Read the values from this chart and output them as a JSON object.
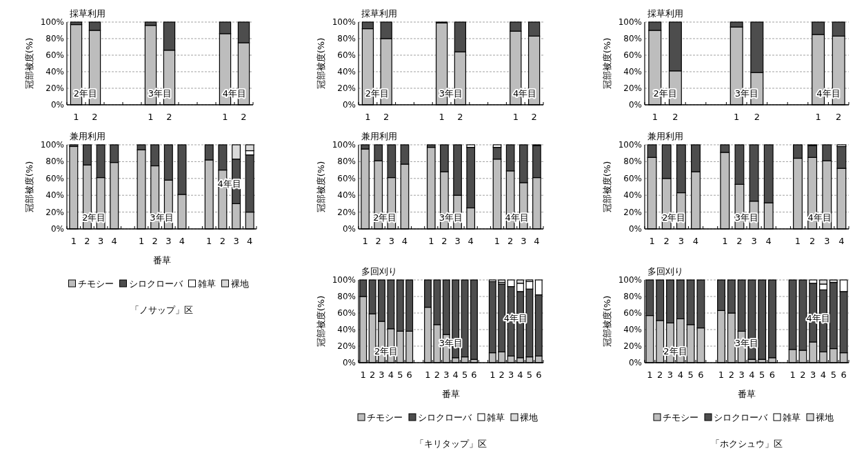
{
  "chart_data": [
    {
      "type": "bar",
      "stacked": true,
      "title": "採草利用",
      "ylabel": "冠部被度(%)",
      "categories": [
        "1",
        "2",
        null,
        null,
        "1",
        "2",
        null,
        null,
        "1",
        "2"
      ],
      "ylim": [
        0,
        100
      ],
      "yticks": [
        {
          "value": 0,
          "label": "0%"
        },
        {
          "value": 20,
          "label": "20%"
        },
        {
          "value": 40,
          "label": "40%"
        },
        {
          "value": 60,
          "label": "60%"
        },
        {
          "value": 80,
          "label": "80%"
        },
        {
          "value": 100,
          "label": "100%"
        }
      ],
      "grid": "y",
      "annotations": [
        "2年目",
        "3年目",
        "4年目"
      ],
      "series": [
        {
          "color": "#bdbdbd",
          "values": [
            97,
            90,
            null,
            null,
            96,
            66,
            null,
            null,
            86,
            75
          ]
        },
        {
          "color": "#4d4d4d",
          "values": [
            3,
            10,
            null,
            null,
            4,
            34,
            null,
            null,
            14,
            25
          ]
        }
      ]
    },
    {
      "type": "bar",
      "stacked": true,
      "title": "採草利用",
      "ylabel": "冠部被度(%)",
      "categories": [
        "1",
        "2",
        null,
        null,
        "1",
        "2",
        null,
        null,
        "1",
        "2"
      ],
      "ylim": [
        0,
        100
      ],
      "yticks": [
        {
          "value": 0,
          "label": "0%"
        },
        {
          "value": 20,
          "label": "20%"
        },
        {
          "value": 40,
          "label": "40%"
        },
        {
          "value": 60,
          "label": "60%"
        },
        {
          "value": 80,
          "label": "80%"
        },
        {
          "value": 100,
          "label": "100%"
        }
      ],
      "grid": "y",
      "annotations": [
        "2年目",
        "3年目",
        "4年目"
      ],
      "series": [
        {
          "color": "#bdbdbd",
          "values": [
            92,
            80,
            null,
            null,
            99,
            64,
            null,
            null,
            89,
            83
          ]
        },
        {
          "color": "#4d4d4d",
          "values": [
            8,
            20,
            null,
            null,
            1,
            36,
            null,
            null,
            11,
            17
          ]
        }
      ]
    },
    {
      "type": "bar",
      "stacked": true,
      "title": "採草利用",
      "ylabel": "冠部被度(%)",
      "categories": [
        "1",
        "2",
        null,
        null,
        "1",
        "2",
        null,
        null,
        "1",
        "2"
      ],
      "ylim": [
        0,
        100
      ],
      "yticks": [
        {
          "value": 0,
          "label": "0%"
        },
        {
          "value": 20,
          "label": "20%"
        },
        {
          "value": 40,
          "label": "40%"
        },
        {
          "value": 60,
          "label": "60%"
        },
        {
          "value": 80,
          "label": "80%"
        },
        {
          "value": 100,
          "label": "100%"
        }
      ],
      "grid": "y",
      "annotations": [
        "2年目",
        "3年目",
        "4年目"
      ],
      "series": [
        {
          "color": "#bdbdbd",
          "values": [
            90,
            41,
            null,
            null,
            94,
            39,
            null,
            null,
            85,
            83
          ]
        },
        {
          "color": "#4d4d4d",
          "values": [
            10,
            59,
            null,
            null,
            6,
            61,
            null,
            null,
            15,
            17
          ]
        }
      ]
    },
    {
      "type": "bar",
      "stacked": true,
      "title": "兼用利用",
      "ylabel": "冠部被度(%)",
      "xlabel": "番草",
      "legend": "bottom",
      "categories": [
        "1",
        "2",
        "3",
        "4",
        null,
        "1",
        "2",
        "3",
        "4",
        null,
        "1",
        "2",
        "3",
        "4"
      ],
      "ylim": [
        0,
        100
      ],
      "yticks": [
        {
          "value": 0,
          "label": "0%"
        },
        {
          "value": 20,
          "label": "20%"
        },
        {
          "value": 40,
          "label": "40%"
        },
        {
          "value": 60,
          "label": "60%"
        },
        {
          "value": 80,
          "label": "80%"
        },
        {
          "value": 100,
          "label": "100%"
        }
      ],
      "grid": "y",
      "annotations": [
        "2年目",
        "3年目",
        "4年目",
        "「ノサップ」区"
      ],
      "series": [
        {
          "name": "チモシー",
          "color": "#bdbdbd",
          "values": [
            98,
            76,
            61,
            79,
            null,
            94,
            75,
            58,
            41,
            null,
            82,
            70,
            30,
            20
          ]
        },
        {
          "name": "シロクローバ",
          "color": "#4d4d4d",
          "values": [
            2,
            24,
            39,
            21,
            null,
            6,
            25,
            42,
            59,
            null,
            18,
            30,
            53,
            68
          ]
        },
        {
          "name": "雑草",
          "color": "#ffffff",
          "values": [
            0,
            0,
            0,
            0,
            null,
            0,
            0,
            0,
            0,
            null,
            0,
            0,
            0,
            5
          ]
        },
        {
          "name": "裸地",
          "color": "#d9d9d9",
          "values": [
            0,
            0,
            0,
            0,
            null,
            0,
            0,
            0,
            0,
            null,
            0,
            0,
            17,
            7
          ]
        }
      ]
    },
    {
      "type": "bar",
      "stacked": true,
      "title": "兼用利用",
      "ylabel": "冠部被度(%)",
      "categories": [
        "1",
        "2",
        "3",
        "4",
        null,
        "1",
        "2",
        "3",
        "4",
        null,
        "1",
        "2",
        "3",
        "4"
      ],
      "ylim": [
        0,
        100
      ],
      "yticks": [
        {
          "value": 0,
          "label": "0%"
        },
        {
          "value": 20,
          "label": "20%"
        },
        {
          "value": 40,
          "label": "40%"
        },
        {
          "value": 60,
          "label": "60%"
        },
        {
          "value": 80,
          "label": "80%"
        },
        {
          "value": 100,
          "label": "100%"
        }
      ],
      "grid": "y",
      "annotations": [
        "2年目",
        "3年目",
        "4年目"
      ],
      "series": [
        {
          "color": "#bdbdbd",
          "values": [
            95,
            81,
            61,
            77,
            null,
            97,
            68,
            40,
            25,
            null,
            83,
            69,
            55,
            61
          ]
        },
        {
          "color": "#4d4d4d",
          "values": [
            5,
            19,
            39,
            23,
            null,
            3,
            32,
            60,
            72,
            null,
            14,
            31,
            45,
            38
          ]
        },
        {
          "color": "#ffffff",
          "values": [
            0,
            0,
            0,
            0,
            null,
            0,
            0,
            0,
            3,
            null,
            3,
            0,
            0,
            1
          ]
        }
      ]
    },
    {
      "type": "bar",
      "stacked": true,
      "title": "兼用利用",
      "ylabel": "冠部被度(%)",
      "categories": [
        "1",
        "2",
        "3",
        "4",
        null,
        "1",
        "2",
        "3",
        "4",
        null,
        "1",
        "2",
        "3",
        "4"
      ],
      "ylim": [
        0,
        100
      ],
      "yticks": [
        {
          "value": 0,
          "label": "0%"
        },
        {
          "value": 20,
          "label": "20%"
        },
        {
          "value": 40,
          "label": "40%"
        },
        {
          "value": 60,
          "label": "60%"
        },
        {
          "value": 80,
          "label": "80%"
        },
        {
          "value": 100,
          "label": "100%"
        }
      ],
      "grid": "y",
      "annotations": [
        "2年目",
        "3年目",
        "4年目"
      ],
      "series": [
        {
          "color": "#bdbdbd",
          "values": [
            85,
            60,
            43,
            68,
            null,
            91,
            53,
            33,
            31,
            null,
            84,
            85,
            81,
            72
          ]
        },
        {
          "color": "#4d4d4d",
          "values": [
            15,
            40,
            57,
            32,
            null,
            9,
            47,
            67,
            69,
            null,
            16,
            14,
            19,
            26
          ]
        },
        {
          "color": "#ffffff",
          "values": [
            0,
            0,
            0,
            0,
            null,
            0,
            0,
            0,
            0,
            null,
            0,
            1,
            0,
            2
          ]
        }
      ]
    },
    {
      "type": "bar",
      "stacked": true,
      "title": "多回刈り",
      "ylabel": "冠部被度(%)",
      "xlabel": "番草",
      "legend": "bottom",
      "categories": [
        "1",
        "2",
        "3",
        "4",
        "5",
        "6",
        null,
        "1",
        "2",
        "3",
        "4",
        "5",
        "6",
        null,
        "1",
        "2",
        "3",
        "4",
        "5",
        "6"
      ],
      "ylim": [
        0,
        100
      ],
      "yticks": [
        {
          "value": 0,
          "label": "0%"
        },
        {
          "value": 20,
          "label": "20%"
        },
        {
          "value": 40,
          "label": "40%"
        },
        {
          "value": 60,
          "label": "60%"
        },
        {
          "value": 80,
          "label": "80%"
        },
        {
          "value": 100,
          "label": "100%"
        }
      ],
      "grid": "y",
      "annotations": [
        "2年目",
        "3年目",
        "4年目",
        "「キリタップ」区"
      ],
      "series": [
        {
          "name": "チモシー",
          "color": "#bdbdbd",
          "values": [
            80,
            59,
            50,
            41,
            38,
            38,
            null,
            67,
            46,
            34,
            6,
            7,
            4,
            null,
            12,
            13,
            8,
            6,
            7,
            8
          ]
        },
        {
          "name": "シロクローバ",
          "color": "#4d4d4d",
          "values": [
            20,
            41,
            50,
            59,
            62,
            62,
            null,
            33,
            54,
            66,
            94,
            93,
            96,
            null,
            86,
            82,
            84,
            80,
            82,
            74
          ]
        },
        {
          "name": "雑草",
          "color": "#ffffff",
          "values": [
            0,
            0,
            0,
            0,
            0,
            0,
            null,
            0,
            0,
            0,
            0,
            0,
            0,
            null,
            2,
            2,
            8,
            10,
            9,
            18
          ]
        },
        {
          "name": "裸地",
          "color": "#d9d9d9",
          "values": [
            0,
            0,
            0,
            0,
            0,
            0,
            null,
            0,
            0,
            0,
            0,
            0,
            0,
            null,
            0,
            3,
            0,
            4,
            2,
            0
          ]
        }
      ]
    },
    {
      "type": "bar",
      "stacked": true,
      "title": "多回刈り",
      "ylabel": "冠部被度(%)",
      "xlabel": "番草",
      "legend": "bottom",
      "categories": [
        "1",
        "2",
        "3",
        "4",
        "5",
        "6",
        null,
        "1",
        "2",
        "3",
        "4",
        "5",
        "6",
        null,
        "1",
        "2",
        "3",
        "4",
        "5",
        "6"
      ],
      "ylim": [
        0,
        100
      ],
      "yticks": [
        {
          "value": 0,
          "label": "0%"
        },
        {
          "value": 20,
          "label": "20%"
        },
        {
          "value": 40,
          "label": "40%"
        },
        {
          "value": 60,
          "label": "60%"
        },
        {
          "value": 80,
          "label": "80%"
        },
        {
          "value": 100,
          "label": "100%"
        }
      ],
      "grid": "y",
      "annotations": [
        "2年目",
        "3年目",
        "4年目",
        "「ホクシュウ」区"
      ],
      "series": [
        {
          "name": "チモシー",
          "color": "#bdbdbd",
          "values": [
            57,
            51,
            48,
            53,
            46,
            42,
            null,
            63,
            60,
            38,
            4,
            4,
            6,
            null,
            16,
            15,
            25,
            13,
            17,
            12
          ]
        },
        {
          "name": "シロクローバ",
          "color": "#4d4d4d",
          "values": [
            43,
            49,
            52,
            47,
            54,
            58,
            null,
            37,
            40,
            62,
            96,
            96,
            94,
            null,
            84,
            85,
            71,
            75,
            80,
            74
          ]
        },
        {
          "name": "雑草",
          "color": "#ffffff",
          "values": [
            0,
            0,
            0,
            0,
            0,
            0,
            null,
            0,
            0,
            0,
            0,
            0,
            0,
            null,
            0,
            0,
            4,
            7,
            0,
            14
          ]
        },
        {
          "name": "裸地",
          "color": "#d9d9d9",
          "values": [
            0,
            0,
            0,
            0,
            0,
            0,
            null,
            0,
            0,
            0,
            0,
            0,
            0,
            null,
            0,
            0,
            0,
            5,
            3,
            0
          ]
        }
      ]
    }
  ]
}
